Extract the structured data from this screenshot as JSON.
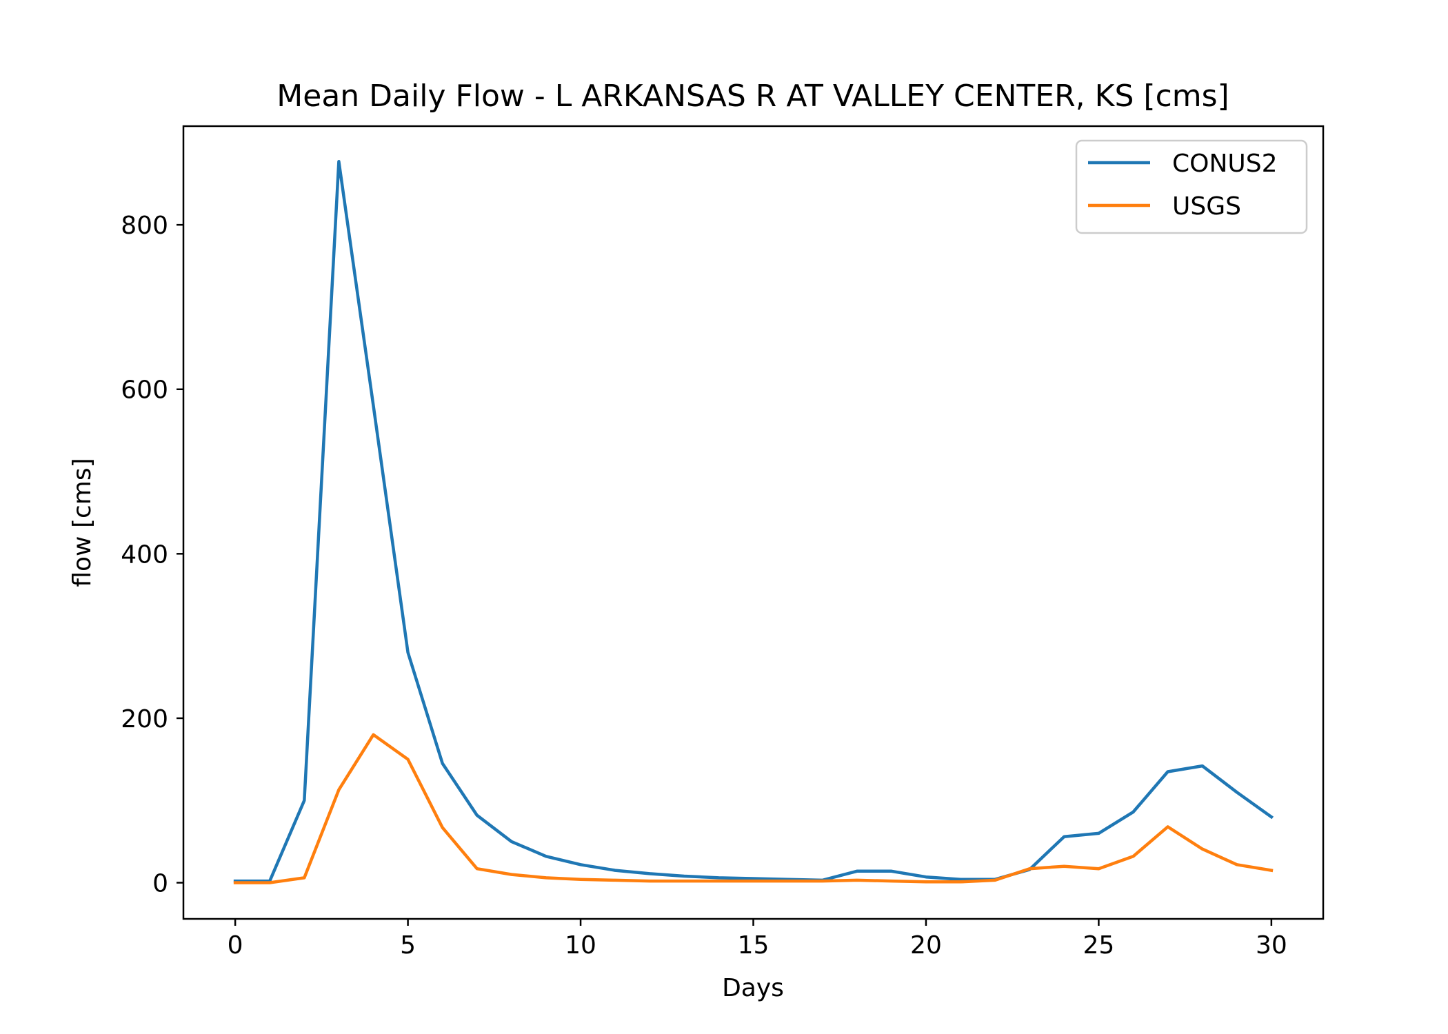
{
  "chart_data": {
    "type": "line",
    "title": "Mean Daily Flow - L ARKANSAS R AT VALLEY CENTER, KS [cms]",
    "xlabel": "Days",
    "ylabel": "flow [cms]",
    "xlim": [
      -1.5,
      31.5
    ],
    "ylim": [
      -44,
      920
    ],
    "xticks": [
      0,
      5,
      10,
      15,
      20,
      25,
      30
    ],
    "yticks": [
      0,
      200,
      400,
      600,
      800
    ],
    "grid": false,
    "legend": "top-right",
    "x": [
      0,
      1,
      2,
      3,
      4,
      5,
      6,
      7,
      8,
      9,
      10,
      11,
      12,
      13,
      14,
      15,
      16,
      17,
      18,
      19,
      20,
      21,
      22,
      23,
      24,
      25,
      26,
      27,
      28,
      29,
      30
    ],
    "series": [
      {
        "name": "CONUS2",
        "color": "#1f77b4",
        "values": [
          2,
          2,
          100,
          877,
          580,
          280,
          145,
          82,
          50,
          32,
          22,
          15,
          11,
          8,
          6,
          5,
          4,
          3,
          14,
          14,
          7,
          4,
          4,
          16,
          56,
          60,
          86,
          135,
          142,
          110,
          80
        ]
      },
      {
        "name": "USGS",
        "color": "#ff7f0e",
        "values": [
          0,
          0,
          6,
          113,
          180,
          150,
          67,
          17,
          10,
          6,
          4,
          3,
          2,
          2,
          2,
          2,
          2,
          2,
          3,
          2,
          1,
          1,
          3,
          17,
          20,
          17,
          32,
          68,
          41,
          22,
          15
        ]
      }
    ]
  }
}
